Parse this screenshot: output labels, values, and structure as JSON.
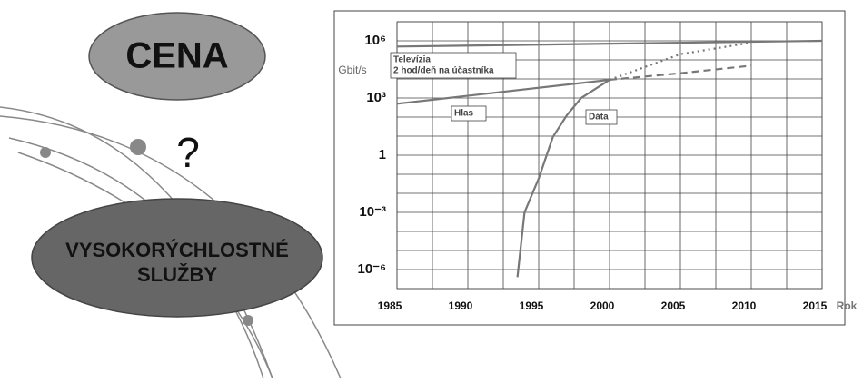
{
  "diagram": {
    "top_label": "CENA",
    "question": "?",
    "bottom_label": [
      "VYSOKORÝCHLOSTNÉ",
      "SLUŽBY"
    ]
  },
  "chart_data": {
    "type": "line",
    "y_label": "Gbit/s",
    "x_label": "Rok",
    "log_scale": true,
    "grid": true,
    "xlim": [
      1985,
      2015
    ],
    "xticks": [
      1985,
      1990,
      1995,
      2000,
      2005,
      2010,
      2015
    ],
    "minor_xticks": [
      1987.5,
      1992.5,
      1997.5,
      2002.5,
      2007.5,
      2012.5
    ],
    "ylim": [
      1e-07,
      10000000.0
    ],
    "yticks": [
      {
        "value": 1e-06,
        "label": "10⁻⁶"
      },
      {
        "value": 0.001,
        "label": "10⁻³"
      },
      1,
      {
        "value": 1000,
        "label": "10³"
      },
      {
        "value": 1000000,
        "label": "10⁶"
      }
    ],
    "minor_yticks": [
      1e-07,
      1e-05,
      0.0001,
      0.01,
      0.1,
      10,
      100,
      10000,
      100000,
      10000000.0
    ],
    "annotations": [
      "2 hod/deň na účastníka"
    ],
    "series": [
      {
        "name": "Televízia",
        "color": "#777777",
        "dash": "solid",
        "x": [
          1985,
          2015
        ],
        "values": [
          500000,
          1000000
        ]
      },
      {
        "name": "Hlas",
        "color": "#777777",
        "dash": "solid",
        "x": [
          1985,
          2000
        ],
        "values": [
          500,
          9000
        ]
      },
      {
        "name": "Dáta",
        "color": "#777777",
        "dash": "solid",
        "x": [
          1993.5,
          1994,
          1995,
          1996,
          1997,
          1998,
          2000
        ],
        "values": [
          4e-07,
          0.001,
          0.06,
          9,
          130,
          1000,
          9000
        ]
      },
      {
        "color": "#777777",
        "dash": "dashed",
        "x": [
          2000,
          2005,
          2010
        ],
        "values": [
          9000,
          20000,
          50000
        ]
      },
      {
        "color": "#777777",
        "dash": "dotted",
        "x": [
          2000,
          2005,
          2010
        ],
        "values": [
          9000,
          200000,
          800000
        ]
      }
    ]
  }
}
